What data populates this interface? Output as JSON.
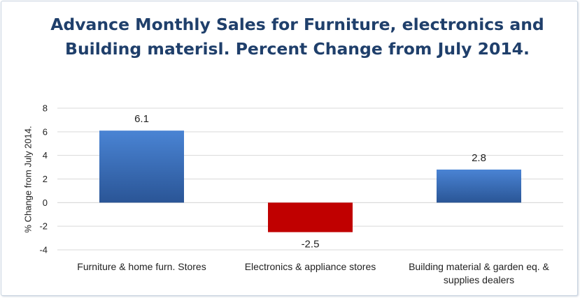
{
  "chart_data": {
    "type": "bar",
    "title": "Advance Monthly Sales for Furniture, electronics and Building materisl. Percent Change from July 2014.",
    "ylabel": "% Change from July 2014.",
    "xlabel": "",
    "ylim": [
      -4,
      8
    ],
    "yticks": [
      -4,
      -2,
      0,
      2,
      4,
      6,
      8
    ],
    "grid": true,
    "legend": "none",
    "categories": [
      [
        "Furniture & home furn. Stores"
      ],
      [
        "Electronics & appliance stores"
      ],
      [
        "Building material & garden eq. &",
        "supplies dealers"
      ]
    ],
    "values": [
      6.1,
      -2.5,
      2.8
    ],
    "data_labels": [
      "6.1",
      "-2.5",
      "2.8"
    ],
    "bar_colors": [
      "#3a6fbe",
      "#c00000",
      "#3a6fbe"
    ]
  }
}
